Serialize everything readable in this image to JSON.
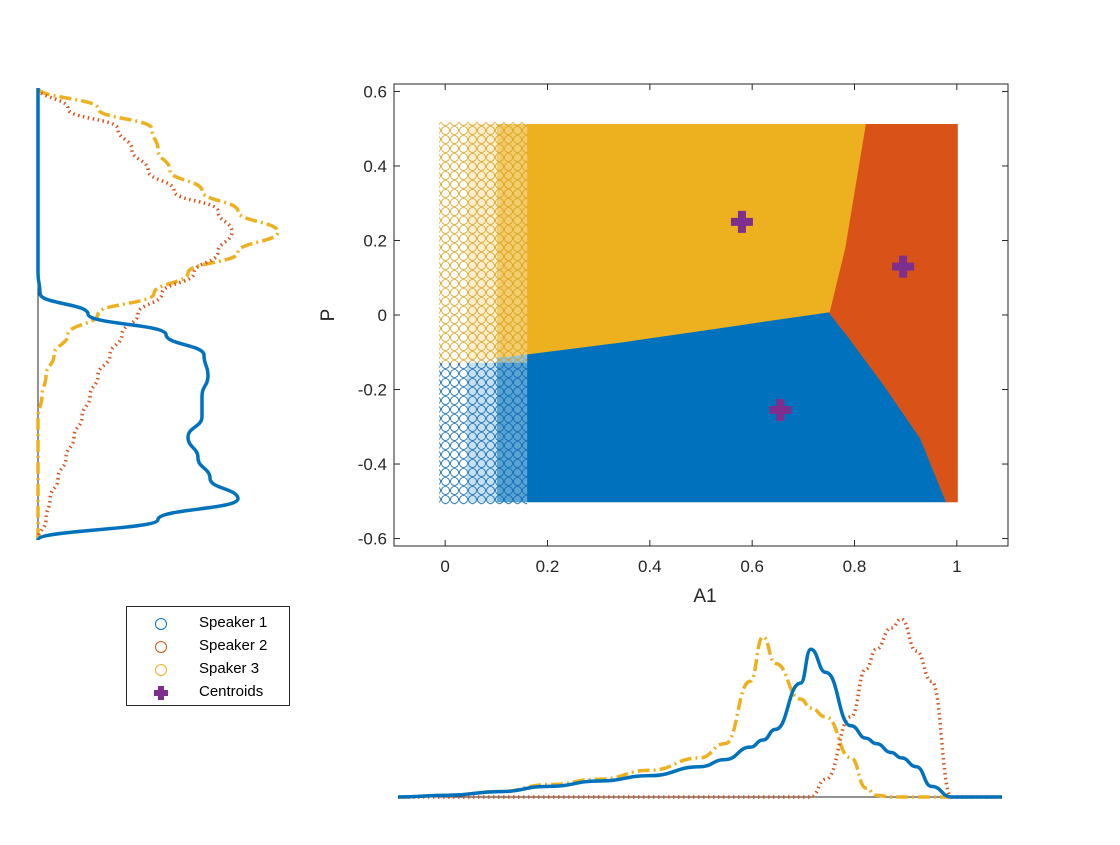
{
  "chart_data": [
    {
      "type": "scatter",
      "xlabel": "A1",
      "ylabel": "P",
      "xlim": [
        -0.1,
        1.1
      ],
      "ylim": [
        -0.62,
        0.62
      ],
      "xticks": [
        "0",
        "0.2",
        "0.4",
        "0.6",
        "0.8",
        "1"
      ],
      "yticks": [
        "-0.6",
        "-0.4",
        "-0.2",
        "0",
        "0.2",
        "0.4",
        "0.6"
      ],
      "grid": false,
      "point_range": {
        "x": [
          0,
          1
        ],
        "y": [
          -0.5,
          0.5
        ]
      },
      "series": [
        {
          "name": "Speaker 1",
          "marker": "o",
          "color": "#0072BD",
          "region": [
            [
              0,
              -0.5
            ],
            [
              0.98,
              -0.5
            ],
            [
              0.93,
              -0.33
            ],
            [
              0.86,
              -0.19
            ],
            [
              0.79,
              -0.06
            ],
            [
              0.75,
              0.01
            ],
            [
              0.55,
              -0.03
            ],
            [
              0.35,
              -0.07
            ],
            [
              0.12,
              -0.11
            ],
            [
              0,
              -0.12
            ]
          ]
        },
        {
          "name": "Speaker 2",
          "marker": "o",
          "color": "#D95319",
          "region": [
            [
              0.82,
              0.51
            ],
            [
              1.0,
              0.51
            ],
            [
              1.0,
              -0.5
            ],
            [
              0.98,
              -0.5
            ],
            [
              0.93,
              -0.33
            ],
            [
              0.86,
              -0.19
            ],
            [
              0.79,
              -0.06
            ],
            [
              0.75,
              0.01
            ],
            [
              0.78,
              0.18
            ],
            [
              0.82,
              0.51
            ]
          ]
        },
        {
          "name": "Spaker 3",
          "marker": "o",
          "color": "#EDB120",
          "region": [
            [
              0,
              0.51
            ],
            [
              0.82,
              0.51
            ],
            [
              0.78,
              0.18
            ],
            [
              0.75,
              0.01
            ],
            [
              0.55,
              -0.03
            ],
            [
              0.35,
              -0.07
            ],
            [
              0.12,
              -0.11
            ],
            [
              0,
              -0.12
            ]
          ]
        },
        {
          "name": "Centroids",
          "marker": "+",
          "color": "#7E2F8E",
          "x": [
            0.58,
            0.895,
            0.655
          ],
          "y": [
            0.25,
            0.13,
            -0.255
          ]
        }
      ]
    },
    {
      "type": "line",
      "orientation": "vertical",
      "position": "left",
      "y": [
        -0.55,
        -0.5,
        -0.45,
        -0.4,
        -0.35,
        -0.3,
        -0.25,
        -0.2,
        -0.15,
        -0.1,
        -0.05,
        0,
        0.05,
        0.1,
        0.15,
        0.2,
        0.25,
        0.3,
        0.35,
        0.4,
        0.45,
        0.5,
        0.55
      ],
      "series": [
        {
          "name": "Speaker 1",
          "color": "#0072BD",
          "dash": "solid",
          "values": [
            0,
            0.6,
            1.0,
            0.86,
            0.8,
            0.75,
            0.82,
            0.82,
            0.85,
            0.83,
            0.64,
            0.25,
            0.01,
            0,
            0,
            0,
            0,
            0,
            0,
            0,
            0,
            0,
            0
          ]
        },
        {
          "name": "Speaker 2",
          "color": "#D95319",
          "dash": "dot",
          "values": [
            0,
            0.04,
            0.06,
            0.1,
            0.14,
            0.18,
            0.22,
            0.26,
            0.3,
            0.36,
            0.42,
            0.5,
            0.62,
            0.78,
            0.9,
            0.97,
            0.9,
            0.68,
            0.55,
            0.47,
            0.4,
            0.15,
            0
          ]
        },
        {
          "name": "Spaker 3",
          "color": "#EDB120",
          "dash": "dashdot",
          "values": [
            0,
            0,
            0,
            0,
            0,
            0,
            0,
            0.02,
            0.04,
            0.08,
            0.15,
            0.3,
            0.58,
            0.75,
            1.0,
            1.2,
            1.0,
            0.82,
            0.66,
            0.6,
            0.57,
            0.3,
            0
          ]
        }
      ]
    },
    {
      "type": "line",
      "position": "bottom",
      "x": [
        -0.1,
        0,
        0.1,
        0.2,
        0.3,
        0.4,
        0.5,
        0.55,
        0.6,
        0.625,
        0.65,
        0.7,
        0.72,
        0.75,
        0.8,
        0.83,
        0.85,
        0.88,
        0.9,
        0.93,
        0.96,
        1.0,
        1.1
      ],
      "series": [
        {
          "name": "Speaker 1",
          "color": "#0072BD",
          "dash": "solid",
          "values": [
            0,
            0.01,
            0.03,
            0.06,
            0.09,
            0.12,
            0.17,
            0.21,
            0.28,
            0.32,
            0.38,
            0.64,
            0.83,
            0.7,
            0.4,
            0.33,
            0.3,
            0.25,
            0.22,
            0.17,
            0.06,
            0,
            0
          ]
        },
        {
          "name": "Speaker 2",
          "color": "#D95319",
          "dash": "dot",
          "values": [
            0,
            0,
            0,
            0,
            0,
            0,
            0,
            0,
            0,
            0,
            0,
            0,
            0,
            0.1,
            0.45,
            0.72,
            0.83,
            0.95,
            1.0,
            0.82,
            0.65,
            0,
            0
          ]
        },
        {
          "name": "Spaker 3",
          "color": "#EDB120",
          "dash": "dashdot",
          "values": [
            0,
            0.01,
            0.03,
            0.07,
            0.1,
            0.15,
            0.22,
            0.3,
            0.65,
            0.9,
            0.75,
            0.55,
            0.5,
            0.45,
            0.22,
            0.05,
            0.01,
            0,
            0,
            0,
            0,
            0,
            0
          ]
        }
      ]
    }
  ],
  "legend": {
    "items": [
      {
        "label": "Speaker 1",
        "color": "#0072BD",
        "marker": "circle"
      },
      {
        "label": "Speaker 2",
        "color": "#D95319",
        "marker": "circle"
      },
      {
        "label": "Spaker 3",
        "color": "#EDB120",
        "marker": "circle"
      },
      {
        "label": "Centroids",
        "color": "#7E2F8E",
        "marker": "plus"
      }
    ]
  }
}
